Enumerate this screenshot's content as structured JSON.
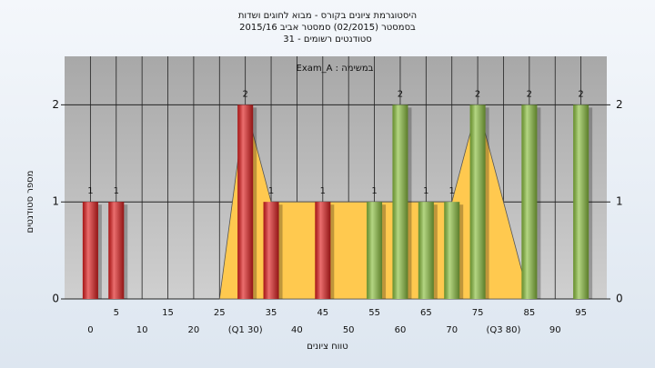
{
  "chart_data": {
    "type": "bar",
    "title": [
      "היסטוגרמת ציונים בקורס - מבוא לחוגים ושדות",
      "בסמסטר  (02/2015)  סמסטר אביב 2015/16",
      "סטודנטים רשומים - 31"
    ],
    "subtitle": "במשימה : Exam_A",
    "x_label": "טווח ציונים",
    "y_label": "מספר סטודנטים",
    "x": [
      0,
      5,
      10,
      15,
      20,
      25,
      30,
      35,
      40,
      45,
      50,
      55,
      60,
      65,
      70,
      75,
      80,
      85,
      90,
      95
    ],
    "series": [
      {
        "type": "bar",
        "values": [
          1,
          1,
          0,
          0,
          0,
          0,
          2,
          1,
          0,
          1,
          0,
          1,
          2,
          1,
          1,
          2,
          0,
          2,
          0,
          2
        ],
        "colors": [
          "#e02020",
          "#e02020",
          "#e02020",
          "#e02020",
          "#e02020",
          "#e02020",
          "#e02020",
          "#e02020",
          "#e02020",
          "#e02020",
          "#8cc040",
          "#8cc040",
          "#8cc040",
          "#8cc040",
          "#8cc040",
          "#8cc040",
          "#8cc040",
          "#8cc040",
          "#8cc040",
          "#8cc040"
        ]
      },
      {
        "type": "area",
        "x": [
          25,
          30,
          35,
          70,
          75,
          85
        ],
        "values": [
          0,
          2,
          1,
          1,
          2,
          0
        ],
        "color": "#ffc94f"
      }
    ],
    "xlim": [
      -5,
      100
    ],
    "ylim": [
      0,
      2.5
    ],
    "xticks": [
      0,
      5,
      10,
      15,
      20,
      25,
      {
        "value": 30,
        "label": "(Q1 30)"
      },
      35,
      40,
      45,
      50,
      55,
      60,
      65,
      70,
      75,
      {
        "value": 80,
        "label": "(Q3 80)"
      },
      85,
      90,
      95
    ],
    "yticks": [
      0,
      1,
      2
    ],
    "grid": true
  }
}
